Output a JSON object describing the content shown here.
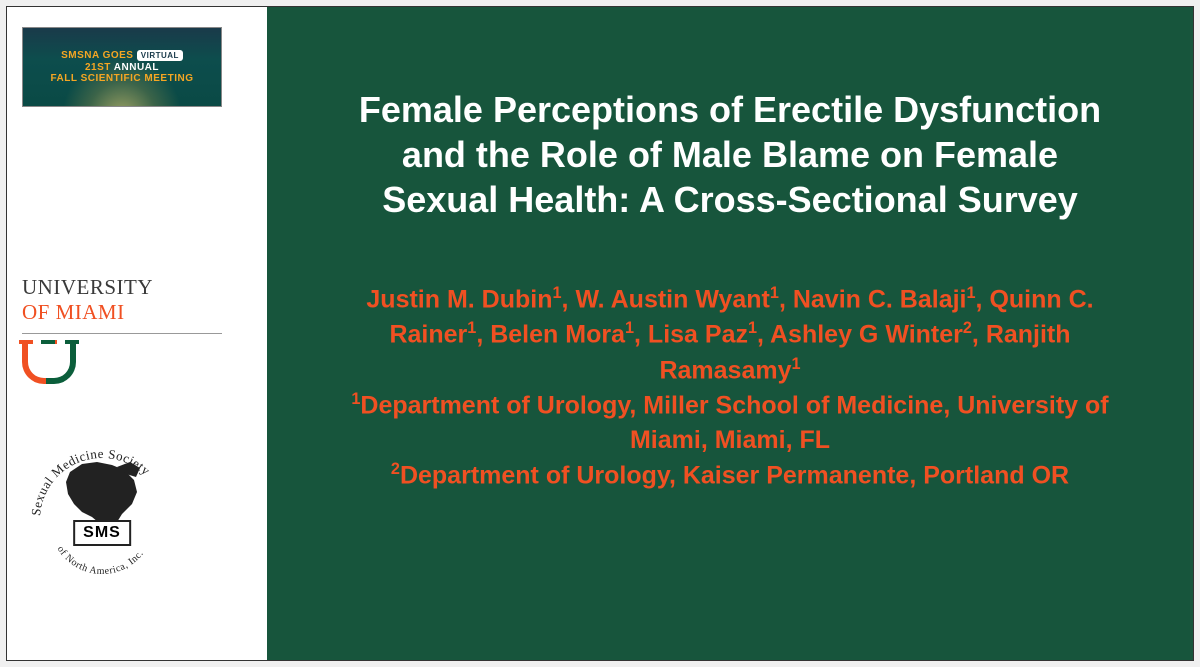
{
  "colors": {
    "slide_bg": "#17553c",
    "title_color": "#ffffff",
    "author_color": "#f05022",
    "um_orange": "#f05022",
    "um_green": "#0b5e3b",
    "smsna_orange": "#f5a623",
    "page_bg": "#ffffff"
  },
  "smsna_badge": {
    "line1_prefix": "SMSNA GOES",
    "line1_pill": "VIRTUAL",
    "line2_prefix": "21ST",
    "line2_rest": "ANNUAL",
    "line3": "FALL SCIENTIFIC MEETING"
  },
  "university": {
    "line1": "UNIVERSITY",
    "line2": "OF MIAMI"
  },
  "sms_logo": {
    "top_arc": "Sexual Medicine Society",
    "bottom_arc": "of North America, Inc.",
    "center": "SMS"
  },
  "title": "Female Perceptions of Erectile Dysfunction and the Role of Male Blame on Female Sexual Health: A Cross-Sectional Survey",
  "authors": {
    "list": [
      {
        "name": "Justin M. Dubin",
        "affil": "1"
      },
      {
        "name": "W. Austin Wyant",
        "affil": "1"
      },
      {
        "name": "Navin C. Balaji",
        "affil": "1"
      },
      {
        "name": "Quinn C. Rainer",
        "affil": "1"
      },
      {
        "name": "Belen Mora",
        "affil": "1"
      },
      {
        "name": "Lisa Paz",
        "affil": "1"
      },
      {
        "name": "Ashley G Winter",
        "affil": "2"
      },
      {
        "name": "Ranjith Ramasamy",
        "affil": "1"
      }
    ],
    "affiliations": [
      {
        "num": "1",
        "text": "Department of Urology, Miller School of Medicine, University of Miami, Miami, FL"
      },
      {
        "num": "2",
        "text": "Department of Urology, Kaiser Permanente, Portland OR"
      }
    ]
  }
}
